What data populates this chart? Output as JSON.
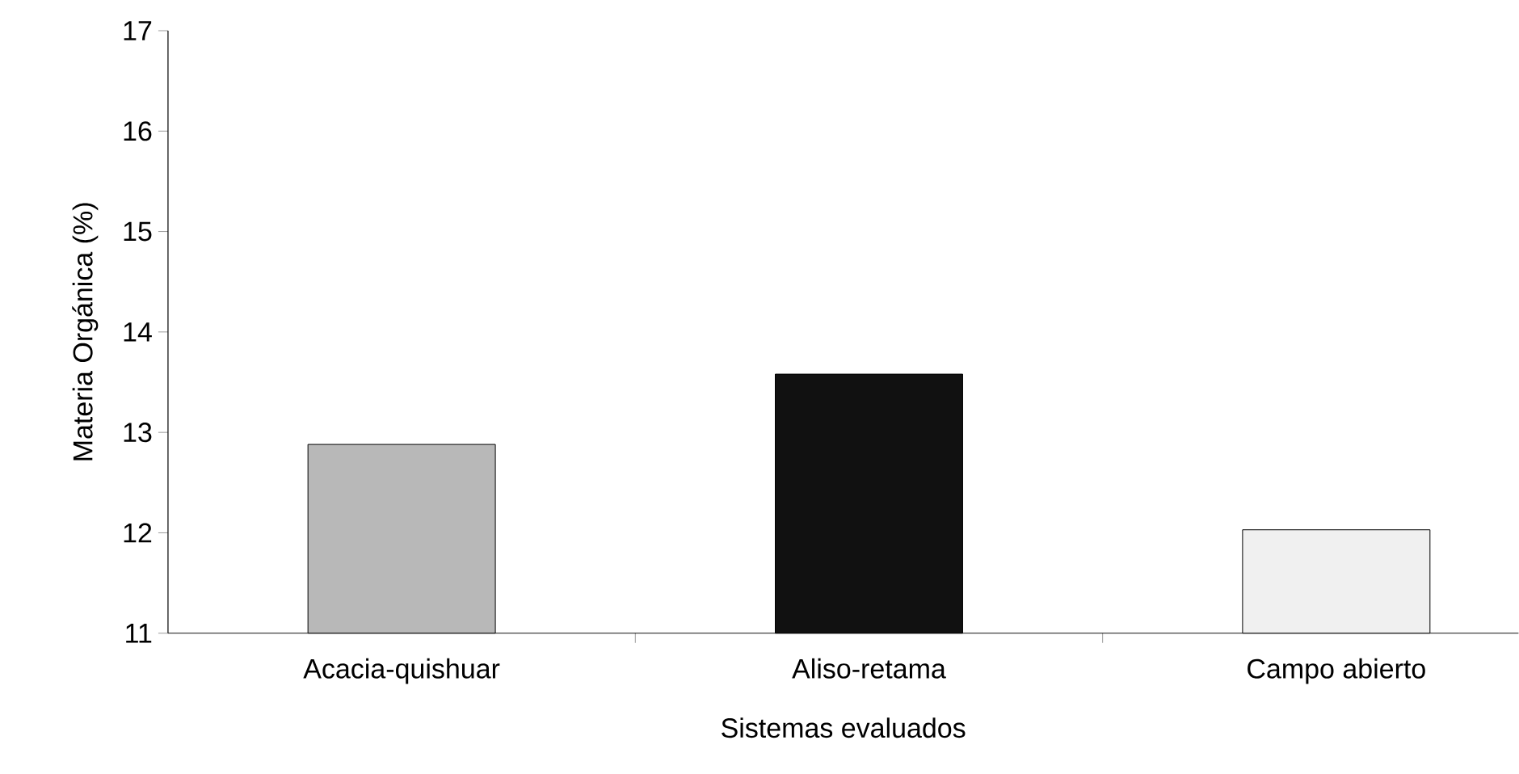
{
  "chart_data": {
    "type": "bar",
    "xlabel": "Sistemas evaluados",
    "ylabel": "Materia Orgánica (%)",
    "categories": [
      "Acacia-quishuar",
      "Aliso-retama",
      "Campo abierto"
    ],
    "values": [
      12.88,
      13.58,
      12.03
    ],
    "colors": [
      "#b8b8b8",
      "#111111",
      "#f0f0f0"
    ],
    "ylim": [
      11,
      17
    ],
    "yticks": [
      11,
      12,
      13,
      14,
      15,
      16,
      17
    ],
    "grid": false
  }
}
